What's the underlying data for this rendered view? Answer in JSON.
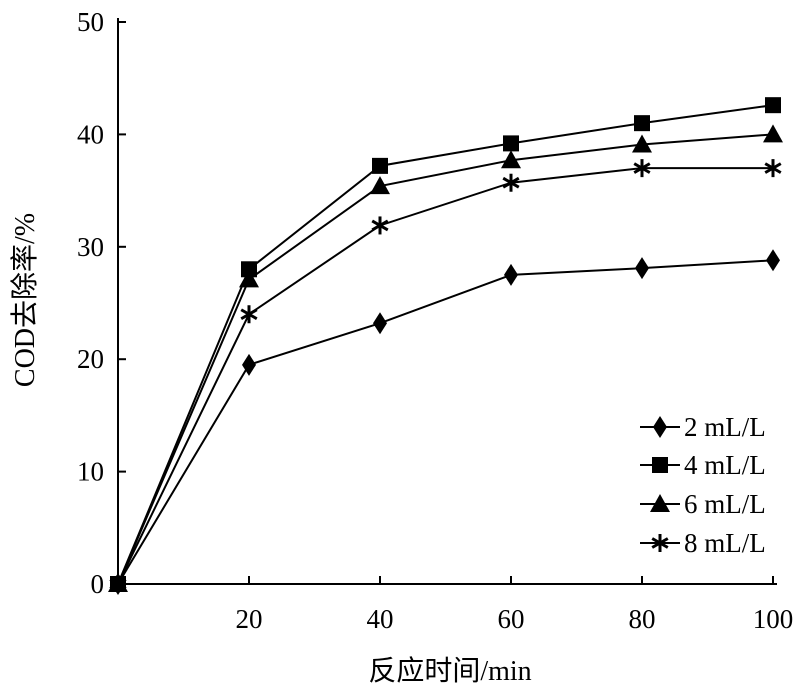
{
  "chart_data": {
    "type": "line",
    "title": "",
    "xlabel": "反应时间/min",
    "ylabel": "COD去除率/%",
    "xlim": [
      0,
      100
    ],
    "ylim": [
      0,
      50
    ],
    "xticks": [
      20,
      40,
      60,
      80,
      100
    ],
    "yticks": [
      0,
      10,
      20,
      30,
      40,
      50
    ],
    "grid": false,
    "legend_position": "bottom-right",
    "x": [
      0,
      20,
      40,
      60,
      80,
      100
    ],
    "series": [
      {
        "name": "2 mL/L",
        "marker": "diamond",
        "values": [
          0,
          19.5,
          23.2,
          27.5,
          28.1,
          28.8
        ]
      },
      {
        "name": "4 mL/L",
        "marker": "square",
        "values": [
          0,
          28.0,
          37.2,
          39.2,
          41.0,
          42.6
        ]
      },
      {
        "name": "6 mL/L",
        "marker": "triangle",
        "values": [
          0,
          27.1,
          35.4,
          37.7,
          39.1,
          40.0
        ]
      },
      {
        "name": "8 mL/L",
        "marker": "asterisk",
        "values": [
          0,
          24.0,
          31.9,
          35.7,
          37.0,
          37.0
        ]
      }
    ]
  }
}
